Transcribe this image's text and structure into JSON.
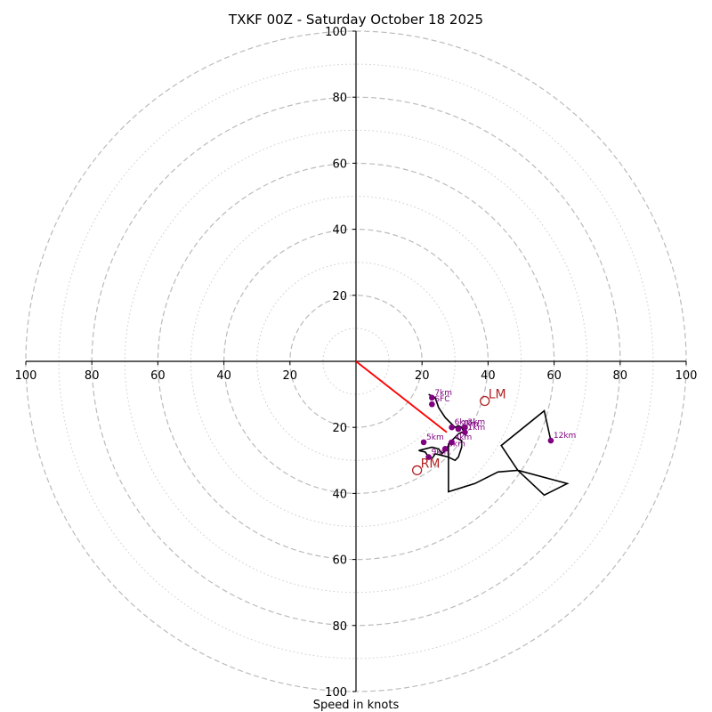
{
  "chart_data": {
    "type": "hodograph",
    "title": "TXKF 00Z - Saturday October 18 2025",
    "xlabel": "Speed in knots",
    "ring_major": [
      20,
      40,
      60,
      80,
      100
    ],
    "ring_minor": [
      10,
      30,
      50,
      70,
      90
    ],
    "tick_labels": [
      "20",
      "40",
      "60",
      "80",
      "100"
    ],
    "max_speed": 100,
    "hodograph_trace": {
      "color": "#000000",
      "points": [
        [
          22,
          -10
        ],
        [
          24,
          -11
        ],
        [
          25,
          -14
        ],
        [
          27,
          -17
        ],
        [
          29,
          -19
        ],
        [
          30,
          -20
        ],
        [
          31,
          -19.5
        ],
        [
          32,
          -20
        ],
        [
          32.5,
          -21
        ],
        [
          33,
          -22
        ],
        [
          32,
          -21.5
        ],
        [
          31,
          -22
        ],
        [
          30,
          -23
        ],
        [
          29,
          -24
        ],
        [
          28,
          -25.5
        ],
        [
          27,
          -27
        ],
        [
          26,
          -28
        ],
        [
          25,
          -26.5
        ],
        [
          23,
          -26
        ],
        [
          21,
          -26.5
        ],
        [
          19,
          -27
        ],
        [
          21,
          -27.5
        ],
        [
          22,
          -29
        ],
        [
          23,
          -29.5
        ],
        [
          24,
          -28
        ],
        [
          26,
          -28.5
        ],
        [
          28,
          -29
        ],
        [
          30,
          -30
        ],
        [
          31,
          -29
        ],
        [
          32,
          -26
        ],
        [
          32,
          -24
        ],
        [
          30,
          -23
        ],
        [
          28,
          -25
        ],
        [
          28,
          -34
        ],
        [
          28,
          -39.5
        ],
        [
          36,
          -37
        ],
        [
          43,
          -33.5
        ],
        [
          49,
          -33
        ],
        [
          57,
          -40.5
        ],
        [
          64,
          -37
        ],
        [
          49,
          -33
        ],
        [
          44,
          -25.5
        ],
        [
          57,
          -15
        ],
        [
          59,
          -24
        ]
      ]
    },
    "height_markers": [
      {
        "label": "SFC",
        "u": 23,
        "v": -13
      },
      {
        "label": "7km",
        "u": 23,
        "v": -11
      },
      {
        "label": "6km",
        "u": 29,
        "v": -20
      },
      {
        "label": "3km",
        "u": 33,
        "v": -20
      },
      {
        "label": "2km",
        "u": 31,
        "v": -20.5
      },
      {
        "label": "1km",
        "u": 33,
        "v": -21.5
      },
      {
        "label": "4km",
        "u": 29,
        "v": -24.5
      },
      {
        "label": "5km",
        "u": 20.5,
        "v": -24.5
      },
      {
        "label": "8km",
        "u": 27,
        "v": -26.5
      },
      {
        "label": "9km",
        "u": 22,
        "v": -29
      },
      {
        "label": "12km",
        "u": 59,
        "v": -24
      }
    ],
    "storm_motions": [
      {
        "label": "LM",
        "u": 39,
        "v": -12
      },
      {
        "label": "RM",
        "u": 18.5,
        "v": -33
      }
    ],
    "mean_wind_vector": {
      "u": 27.5,
      "v": -21.5,
      "color": "#ff0000"
    },
    "colors": {
      "marker": "#800080",
      "storm": "#b22222",
      "ring": "#bbbbbb",
      "trace": "#000000"
    }
  }
}
